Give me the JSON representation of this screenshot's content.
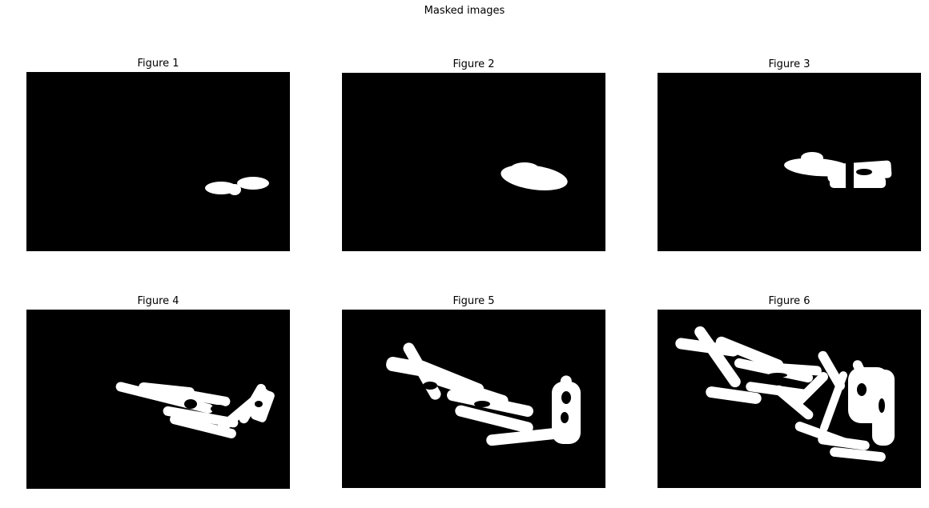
{
  "figure": {
    "title": "Masked images",
    "background": "#ffffff",
    "image_background": "#000000",
    "mask_color": "#ffffff",
    "panels": [
      {
        "title": "Figure 1"
      },
      {
        "title": "Figure 2"
      },
      {
        "title": "Figure 3"
      },
      {
        "title": "Figure 4"
      },
      {
        "title": "Figure 5"
      },
      {
        "title": "Figure 6"
      }
    ]
  }
}
